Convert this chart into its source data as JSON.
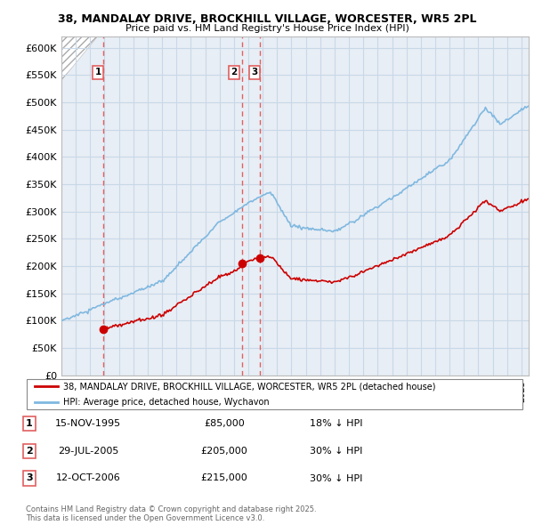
{
  "title_line1": "38, MANDALAY DRIVE, BROCKHILL VILLAGE, WORCESTER, WR5 2PL",
  "title_line2": "Price paid vs. HM Land Registry's House Price Index (HPI)",
  "ylim": [
    0,
    620000
  ],
  "yticks": [
    0,
    50000,
    100000,
    150000,
    200000,
    250000,
    300000,
    350000,
    400000,
    450000,
    500000,
    550000,
    600000
  ],
  "ytick_labels": [
    "£0",
    "£50K",
    "£100K",
    "£150K",
    "£200K",
    "£250K",
    "£300K",
    "£350K",
    "£400K",
    "£450K",
    "£500K",
    "£550K",
    "£600K"
  ],
  "background_color": "#ffffff",
  "plot_bg_color": "#e8eef5",
  "grid_color": "#c8d8e8",
  "hpi_color": "#7fb8e0",
  "price_color": "#cc0000",
  "sale_marker_color": "#cc0000",
  "dashed_line_color": "#e06060",
  "legend_label_price": "38, MANDALAY DRIVE, BROCKHILL VILLAGE, WORCESTER, WR5 2PL (detached house)",
  "legend_label_hpi": "HPI: Average price, detached house, Wychavon",
  "sale_points": [
    {
      "label": "1",
      "date_num": 1995.88,
      "price": 85000
    },
    {
      "label": "2",
      "date_num": 2005.57,
      "price": 205000
    },
    {
      "label": "3",
      "date_num": 2006.78,
      "price": 215000
    }
  ],
  "table_rows": [
    {
      "num": "1",
      "date": "15-NOV-1995",
      "price": "£85,000",
      "hpi": "18% ↓ HPI"
    },
    {
      "num": "2",
      "date": "29-JUL-2005",
      "price": "£205,000",
      "hpi": "30% ↓ HPI"
    },
    {
      "num": "3",
      "date": "12-OCT-2006",
      "price": "£215,000",
      "hpi": "30% ↓ HPI"
    }
  ],
  "footer_text": "Contains HM Land Registry data © Crown copyright and database right 2025.\nThis data is licensed under the Open Government Licence v3.0.",
  "xmin": 1993.0,
  "xmax": 2025.5
}
